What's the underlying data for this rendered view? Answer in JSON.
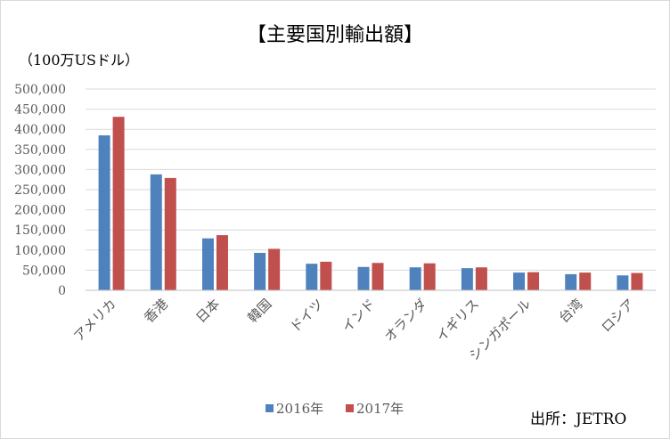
{
  "chart_data": {
    "type": "bar",
    "title": "【主要国別輸出額】",
    "unit_label": "（100万USドル）",
    "categories": [
      "アメリカ",
      "香港",
      "日本",
      "韓国",
      "ドイツ",
      "インド",
      "オランダ",
      "イギリス",
      "シンガポール",
      "台湾",
      "ロシア"
    ],
    "series": [
      {
        "name": "2016年",
        "color": "#4f81bd",
        "values": [
          385000,
          288000,
          129000,
          93000,
          66000,
          58000,
          57000,
          55000,
          44000,
          40000,
          37000
        ]
      },
      {
        "name": "2017年",
        "color": "#c0504d",
        "values": [
          431000,
          279000,
          137000,
          103000,
          71000,
          68000,
          67000,
          57000,
          45000,
          44000,
          43000
        ]
      }
    ],
    "ylim": [
      0,
      500000
    ],
    "yticks": [
      "0",
      "50,000",
      "100,000",
      "150,000",
      "200,000",
      "250,000",
      "300,000",
      "350,000",
      "400,000",
      "450,000",
      "500,000"
    ],
    "grid": true,
    "legend_position": "bottom",
    "source": "出所：JETRO"
  }
}
